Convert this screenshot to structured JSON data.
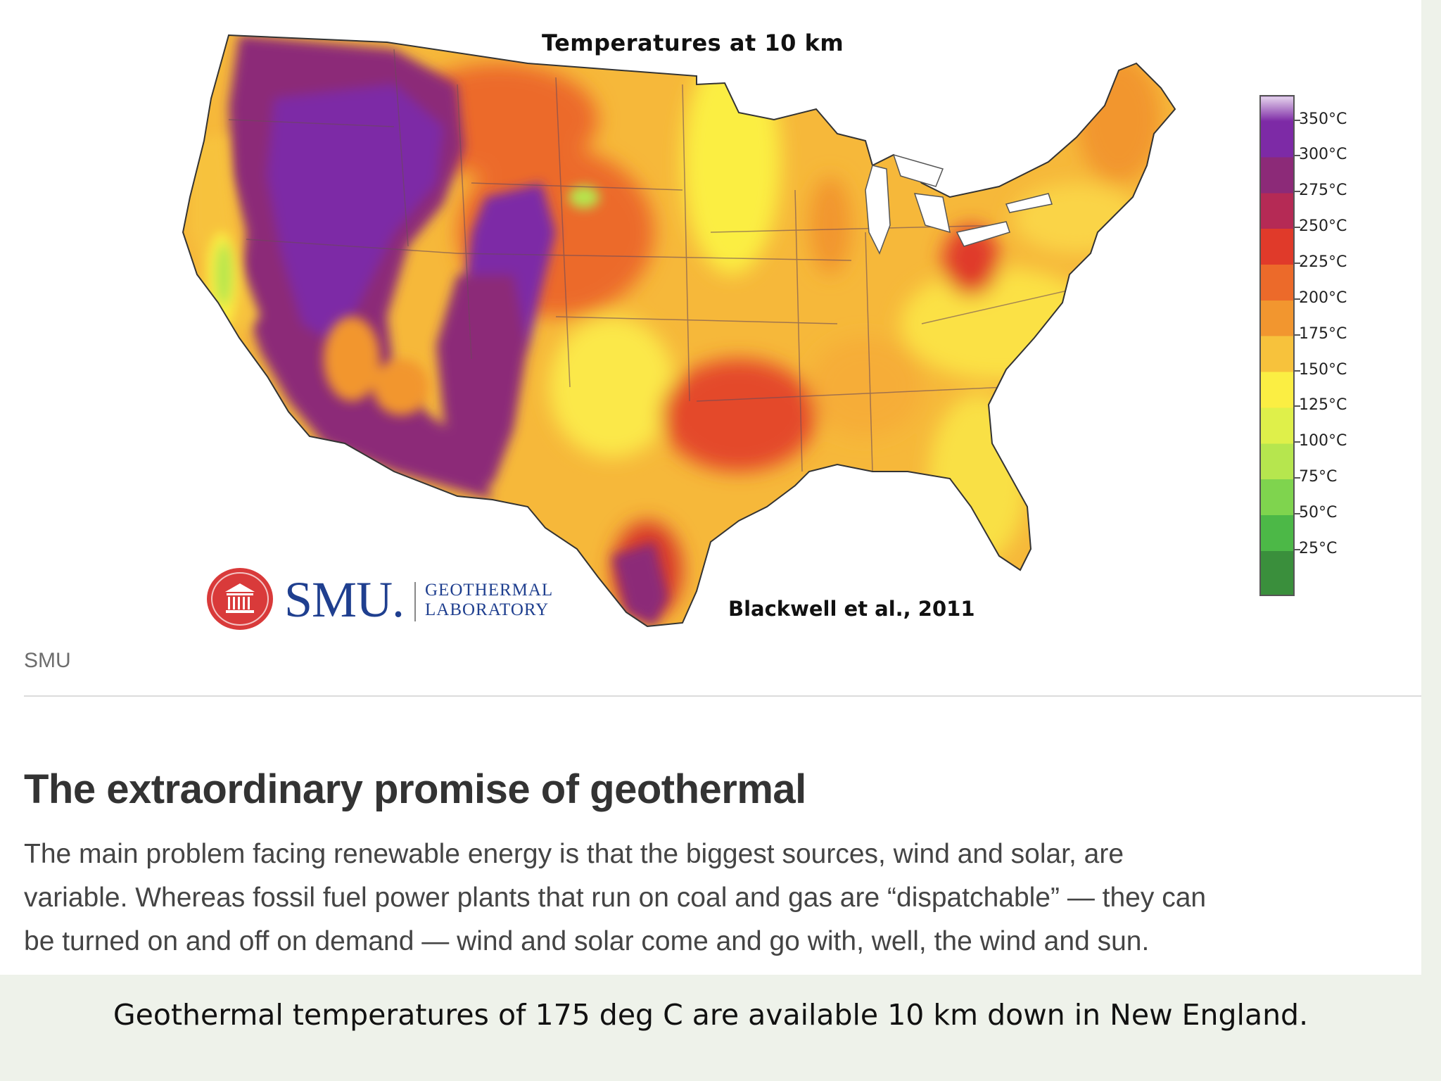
{
  "map": {
    "title": "Temperatures at 10 km",
    "citation": "Blackwell et al., 2011",
    "legend": [
      {
        "label": "350°C",
        "color": "#7d2aa6"
      },
      {
        "label": "300°C",
        "color": "#8c2a78"
      },
      {
        "label": "275°C",
        "color": "#b52a55"
      },
      {
        "label": "250°C",
        "color": "#e03a2a"
      },
      {
        "label": "225°C",
        "color": "#ec6a2a"
      },
      {
        "label": "200°C",
        "color": "#f2962f"
      },
      {
        "label": "175°C",
        "color": "#f7c23c"
      },
      {
        "label": "150°C",
        "color": "#fbee43"
      },
      {
        "label": "125°C",
        "color": "#dff04a"
      },
      {
        "label": "100°C",
        "color": "#b6e64e"
      },
      {
        "label": "75°C",
        "color": "#7fd44e"
      },
      {
        "label": "50°C",
        "color": "#4cb847"
      },
      {
        "label": "25°C",
        "color": "#3a8f3c"
      }
    ],
    "logo": {
      "wordmark": "SMU.",
      "unit_line1": "GEOTHERMAL",
      "unit_line2": "LABORATORY"
    }
  },
  "article": {
    "source": "SMU",
    "headline": "The extraordinary promise of geothermal",
    "body_lines": [
      "The main problem facing renewable energy is that the biggest sources, wind and solar, are",
      "variable. Whereas fossil fuel power plants that run on coal and gas are “dispatchable” — they can",
      "be turned on and off on demand — wind and solar come and go with, well, the wind and sun."
    ]
  },
  "caption": "Geothermal temperatures of 175 deg C are available 10 km down in New England."
}
